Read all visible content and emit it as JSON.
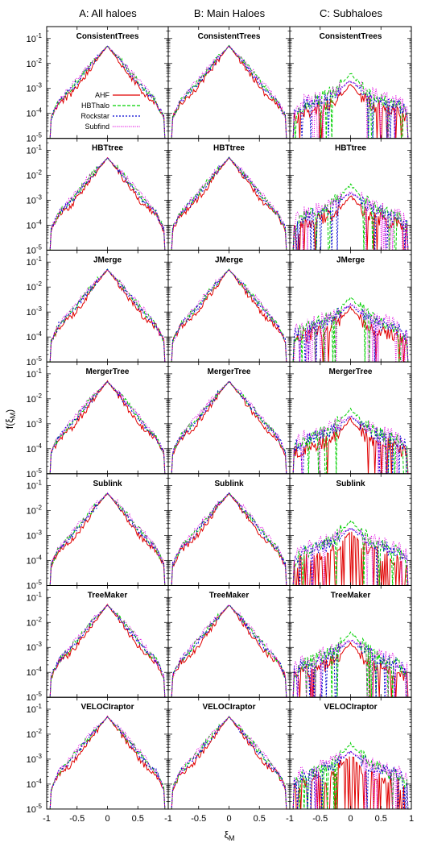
{
  "colors": {
    "AHF": "#e00000",
    "HBThalo": "#00d000",
    "Rockstar": "#0000d0",
    "Subfind": "#e000e0"
  },
  "chart_data": {
    "type": "line",
    "layout": "7 rows x 3 columns of panels sharing x and y axes",
    "column_titles": [
      "A: All haloes",
      "B: Main Haloes",
      "C: Subhaloes"
    ],
    "row_titles": [
      "ConsistentTrees",
      "HBTtree",
      "JMerge",
      "MergerTree",
      "Sublink",
      "TreeMaker",
      "VELOCIraptor"
    ],
    "xlabel": "ξ",
    "xlabel_sub": "M",
    "ylabel": "f(ξ",
    "ylabel_sub": "M",
    "ylabel_close": ")",
    "xlim": [
      -1,
      1
    ],
    "ylim": [
      1e-05,
      0.3
    ],
    "y_scale": "log",
    "xticks": [
      {
        "v": -1,
        "label": "-1"
      },
      {
        "v": -0.5,
        "label": "-0.5"
      },
      {
        "v": 0,
        "label": "0"
      },
      {
        "v": 0.5,
        "label": "0.5"
      },
      {
        "v": 1,
        "label": "1"
      }
    ],
    "yticks": [
      {
        "base": "10",
        "exp": "-1",
        "v": 0.1
      },
      {
        "base": "10",
        "exp": "-2",
        "v": 0.01
      },
      {
        "base": "10",
        "exp": "-3",
        "v": 0.001
      },
      {
        "base": "10",
        "exp": "-4",
        "v": 0.0001
      },
      {
        "base": "10",
        "exp": "-5",
        "v": 1e-05
      }
    ],
    "legend": {
      "panel": "row 1, column A",
      "placement": "center-right",
      "entries": [
        "AHF",
        "HBThalo",
        "Rockstar",
        "Subfind"
      ]
    },
    "x": [
      -1,
      -0.8,
      -0.6,
      -0.4,
      -0.2,
      0,
      0.2,
      0.4,
      0.6,
      0.8,
      1
    ],
    "series_approx": {
      "all_and_main_haloes": {
        "AHF": [
          3e-05,
          0.00025,
          0.0006,
          0.0025,
          0.012,
          0.05,
          0.012,
          0.0025,
          0.0006,
          0.00025,
          3e-05
        ],
        "HBThalo": [
          3e-05,
          0.0003,
          0.001,
          0.004,
          0.015,
          0.05,
          0.015,
          0.004,
          0.001,
          0.0003,
          3e-05
        ],
        "Rockstar": [
          3e-05,
          0.0003,
          0.0009,
          0.0035,
          0.014,
          0.05,
          0.014,
          0.0035,
          0.0009,
          0.0003,
          3e-05
        ],
        "Subfind": [
          3e-05,
          0.0003,
          0.0012,
          0.0045,
          0.016,
          0.05,
          0.016,
          0.0045,
          0.0012,
          0.0003,
          3e-05
        ]
      },
      "subhaloes": {
        "AHF": [
          5e-05,
          0.0001,
          0.00015,
          0.0002,
          0.0004,
          0.0015,
          0.0004,
          0.0002,
          0.00015,
          0.0001,
          5e-05
        ],
        "HBThalo": [
          5e-05,
          0.0002,
          0.0003,
          0.0005,
          0.0012,
          0.004,
          0.0012,
          0.0005,
          0.0003,
          0.0002,
          5e-05
        ],
        "Rockstar": [
          8e-05,
          0.0002,
          0.0003,
          0.0004,
          0.0008,
          0.002,
          0.0008,
          0.0004,
          0.0003,
          0.0002,
          8e-05
        ],
        "Subfind": [
          0.0001,
          0.0003,
          0.0004,
          0.0006,
          0.001,
          0.002,
          0.001,
          0.0006,
          0.0004,
          0.0003,
          0.0001
        ]
      }
    }
  }
}
